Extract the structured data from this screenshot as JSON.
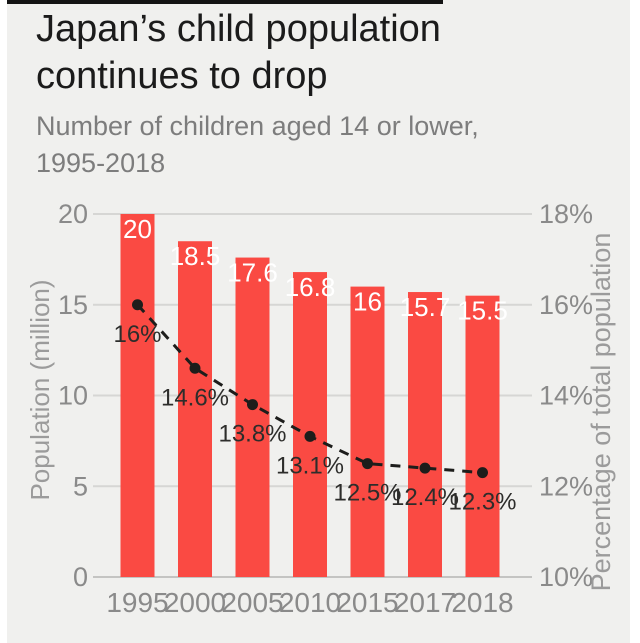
{
  "page": {
    "background_color": "#ffffff",
    "card_background_color": "#f0f0ee",
    "top_strip_color": "#141414"
  },
  "header": {
    "title_lines": [
      "Japan’s child population",
      "continues to drop"
    ],
    "subtitle_lines": [
      "Number of children aged 14 or lower,",
      "1995-2018"
    ]
  },
  "chart_data": {
    "type": "bar",
    "categories": [
      "1995",
      "2000",
      "2005",
      "2010",
      "2015",
      "2017",
      "2018"
    ],
    "series": [
      {
        "name": "Population (million)",
        "type": "bar",
        "axis": "left",
        "values": [
          20,
          18.5,
          17.6,
          16.8,
          16,
          15.7,
          15.5
        ],
        "labels": [
          "20",
          "18.5",
          "17.6",
          "16.8",
          "16",
          "15.7",
          "15.5"
        ],
        "color": "#fa4a43",
        "label_color": "#ffffff"
      },
      {
        "name": "Percentage of total population",
        "type": "line",
        "style": "dashed",
        "axis": "right",
        "values": [
          16,
          14.6,
          13.8,
          13.1,
          12.5,
          12.4,
          12.3
        ],
        "labels": [
          "16%",
          "14.6%",
          "13.8%",
          "13.1%",
          "12.5%",
          "12.4%",
          "12.3%"
        ],
        "color": "#1d1d1b",
        "label_color": "#2d2d2b"
      }
    ],
    "left_axis": {
      "title": "Population (million)",
      "range": [
        0,
        20
      ],
      "ticks": [
        0,
        5,
        10,
        15,
        20
      ],
      "tick_labels": [
        "0",
        "5",
        "10",
        "15",
        "20"
      ]
    },
    "right_axis": {
      "title": "Percentage of total population",
      "range": [
        10,
        18
      ],
      "ticks": [
        10,
        12,
        14,
        16,
        18
      ],
      "tick_labels": [
        "10%",
        "12%",
        "14%",
        "16%",
        "18%"
      ]
    },
    "grid": true,
    "legend": "none",
    "gridline_color": "#d6d6d4",
    "baseline_color": "#c4c4c2",
    "tick_label_color": "#8a8a8a",
    "axis_title_color": "#9b9b9b"
  }
}
